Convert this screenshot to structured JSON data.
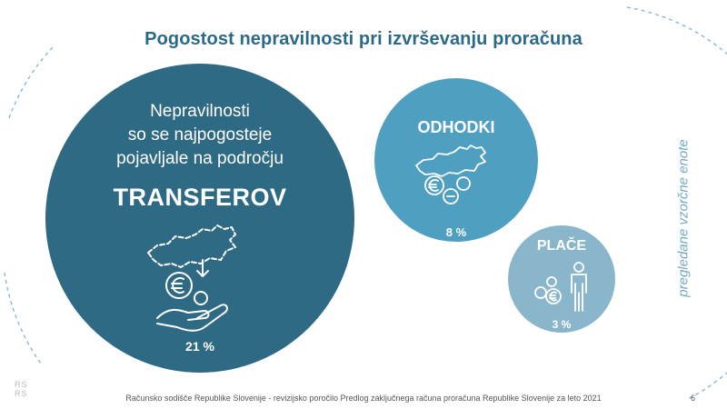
{
  "title": "Pogostost nepravilnosti  pri izvrševanju proračuna",
  "side_label": "pregledane vzorčne enote",
  "main_circle": {
    "intro_lines": [
      "Nepravilnosti",
      "so se najpogosteje",
      "pojavljale na področju"
    ],
    "label": "TRANSFEROV",
    "percent": "21 %",
    "icon": "map-coins-hand-icon",
    "color": "#2f6a84"
  },
  "circles": [
    {
      "label": "ODHODKI",
      "percent": "8 %",
      "icon": "map-coins-icon",
      "color": "#4f9fc0"
    },
    {
      "label": "PLAČE",
      "percent": "3 %",
      "icon": "coins-person-icon",
      "color": "#8ab6cb"
    }
  ],
  "logo_text": [
    "RS",
    "RS"
  ],
  "footer": "Računsko sodišče Republike Slovenije - revizijsko poročilo Predlog zaključnega računa proračuna Republike Slovenije za leto 2021",
  "page_number": "6"
}
